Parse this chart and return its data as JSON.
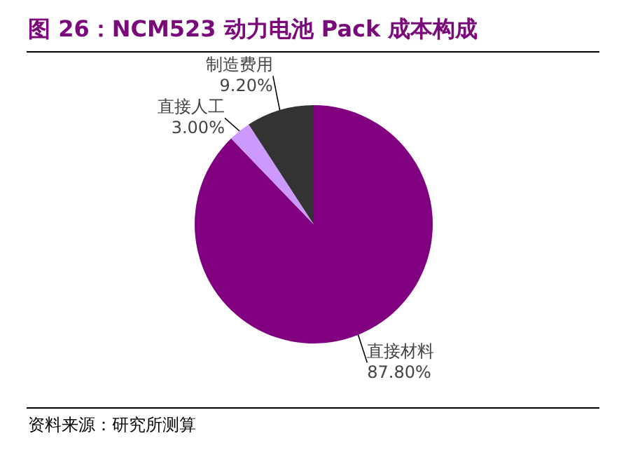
{
  "chart_data": {
    "type": "pie",
    "title": "图 26：NCM523 动力电池 Pack 成本构成",
    "categories": [
      "直接材料",
      "直接人工",
      "制造费用"
    ],
    "values": [
      87.8,
      3.0,
      9.2
    ],
    "value_labels": [
      "87.80%",
      "3.00%",
      "9.20%"
    ],
    "colors": [
      "#800080",
      "#cc99ff",
      "#333333"
    ],
    "annotations": [
      "资料来源：研究所测算"
    ]
  }
}
